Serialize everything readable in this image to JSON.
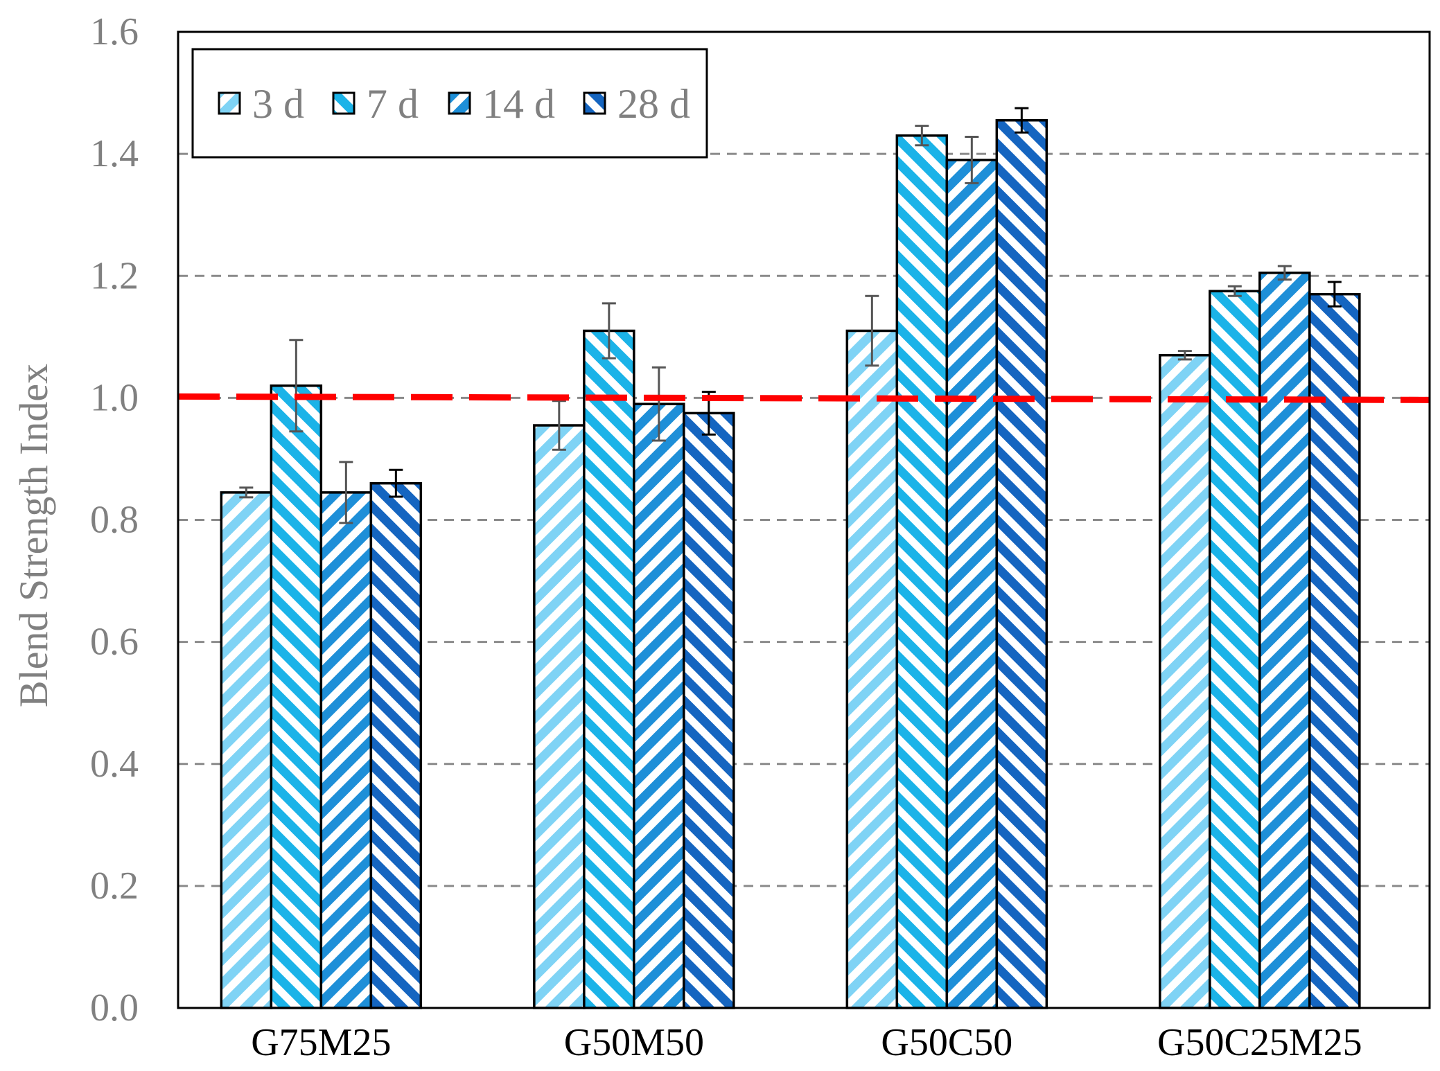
{
  "chart_data": {
    "type": "bar",
    "title": "",
    "xlabel": "",
    "ylabel": "Blend Strength Index",
    "ylim": [
      0,
      1.6
    ],
    "yticks": [
      "0.0",
      "0.2",
      "0.4",
      "0.6",
      "0.8",
      "1.0",
      "1.2",
      "1.4",
      "1.6"
    ],
    "grid": "horizontal dashed",
    "legend_position": "top-left",
    "categories": [
      "G75M25",
      "G50M50",
      "G50C50",
      "G50C25M25"
    ],
    "series": [
      {
        "name": "3 d",
        "values": [
          0.845,
          0.955,
          1.11,
          1.07
        ],
        "errors": [
          0.008,
          0.04,
          0.057,
          0.007
        ],
        "color": "#7FD3F5"
      },
      {
        "name": "7 d",
        "values": [
          1.02,
          1.11,
          1.43,
          1.175
        ],
        "errors": [
          0.075,
          0.045,
          0.016,
          0.008
        ],
        "color": "#1BB3E8"
      },
      {
        "name": "14 d",
        "values": [
          0.845,
          0.99,
          1.39,
          1.205
        ],
        "errors": [
          0.05,
          0.06,
          0.038,
          0.011
        ],
        "color": "#1E8FD8"
      },
      {
        "name": "28 d",
        "values": [
          0.86,
          0.975,
          1.455,
          1.17
        ],
        "errors": [
          0.022,
          0.035,
          0.02,
          0.02
        ],
        "color": "#1565C0"
      }
    ],
    "reference_line": {
      "value": 1.0,
      "color": "#FF0000",
      "style": "dashed"
    }
  }
}
